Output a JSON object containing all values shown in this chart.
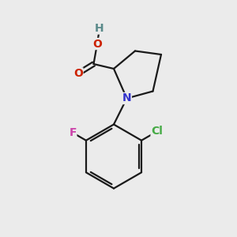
{
  "background_color": "#ebebeb",
  "bond_color": "#1a1a1a",
  "N_color": "#3333cc",
  "O_color": "#cc2200",
  "H_color": "#5a8a8a",
  "F_color": "#cc44aa",
  "Cl_color": "#44aa44",
  "line_width": 1.6,
  "figsize": [
    3.0,
    3.0
  ],
  "dpi": 100,
  "xlim": [
    0,
    10
  ],
  "ylim": [
    0,
    10
  ]
}
